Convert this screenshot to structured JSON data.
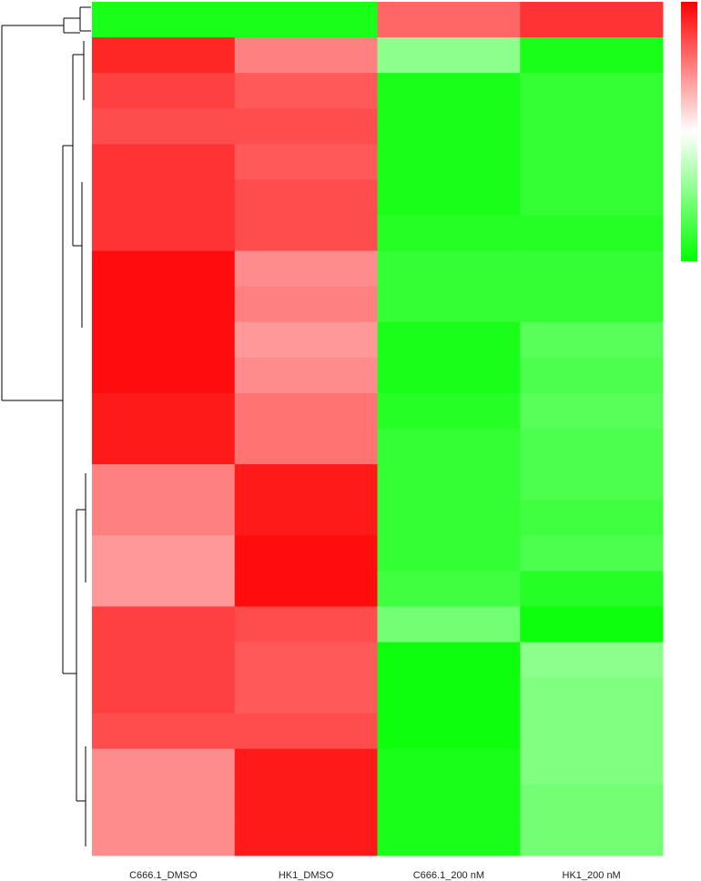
{
  "chart_data": {
    "type": "heatmap",
    "categories": [
      "C666.1_DMSO",
      "HK1_DMSO",
      "C666.1_200 nM",
      "HK1_200 nM"
    ],
    "values": [
      [
        -0.9,
        -0.9,
        0.6,
        0.8
      ],
      [
        0.85,
        0.5,
        -0.45,
        -0.9
      ],
      [
        0.75,
        0.65,
        -0.9,
        -0.8
      ],
      [
        0.7,
        0.7,
        -0.9,
        -0.8
      ],
      [
        0.8,
        0.65,
        -0.9,
        -0.8
      ],
      [
        0.8,
        0.7,
        -0.9,
        -0.8
      ],
      [
        0.8,
        0.7,
        -0.85,
        -0.85
      ],
      [
        0.95,
        0.45,
        -0.8,
        -0.8
      ],
      [
        0.95,
        0.5,
        -0.8,
        -0.8
      ],
      [
        0.95,
        0.4,
        -0.9,
        -0.65
      ],
      [
        0.95,
        0.45,
        -0.9,
        -0.7
      ],
      [
        0.9,
        0.55,
        -0.85,
        -0.65
      ],
      [
        0.9,
        0.55,
        -0.8,
        -0.7
      ],
      [
        0.5,
        0.9,
        -0.8,
        -0.7
      ],
      [
        0.5,
        0.9,
        -0.8,
        -0.75
      ],
      [
        0.4,
        0.95,
        -0.8,
        -0.7
      ],
      [
        0.4,
        0.95,
        -0.75,
        -0.85
      ],
      [
        0.75,
        0.7,
        -0.55,
        -0.95
      ],
      [
        0.75,
        0.65,
        -0.95,
        -0.45
      ],
      [
        0.75,
        0.65,
        -0.95,
        -0.5
      ],
      [
        0.7,
        0.7,
        -0.95,
        -0.5
      ],
      [
        0.45,
        0.9,
        -0.9,
        -0.5
      ],
      [
        0.45,
        0.9,
        -0.9,
        -0.55
      ],
      [
        0.45,
        0.9,
        -0.9,
        -0.55
      ]
    ],
    "zlim": [
      -1,
      1
    ],
    "low_color": "#00ff00",
    "mid_color": "#ffffff",
    "high_color": "#ff0000"
  }
}
